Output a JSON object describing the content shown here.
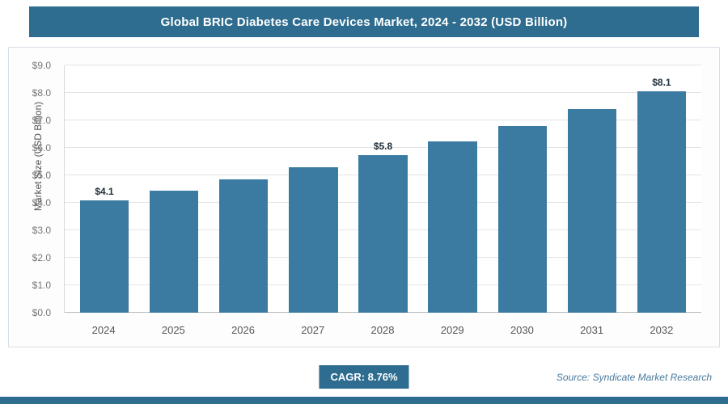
{
  "header": {
    "title": "Global BRIC Diabetes Care Devices Market, 2024 - 2032 (USD Billion)"
  },
  "chart_data": {
    "type": "bar",
    "title": "Global BRIC Diabetes Care Devices Market, 2024 - 2032 (USD Billion)",
    "categories": [
      "2024",
      "2025",
      "2026",
      "2027",
      "2028",
      "2029",
      "2030",
      "2031",
      "2032"
    ],
    "values": [
      4.1,
      4.45,
      4.85,
      5.3,
      5.75,
      6.25,
      6.8,
      7.4,
      8.05
    ],
    "bar_labels": [
      "$4.1",
      "",
      "",
      "",
      "$5.8",
      "",
      "",
      "",
      "$8.1"
    ],
    "xlabel": "",
    "ylabel": "Market Size (USD Billion)",
    "ylim": [
      0,
      9
    ],
    "ytick_step": 1,
    "ytick_labels": [
      "$0.0",
      "$1.0",
      "$2.0",
      "$3.0",
      "$4.0",
      "$5.0",
      "$6.0",
      "$7.0",
      "$8.0",
      "$9.0"
    ],
    "grid": true,
    "legend": false,
    "bar_color": "#3b7ba2",
    "accent_color": "#2e6d8f"
  },
  "footer": {
    "cagr_label": "CAGR: 8.76%",
    "source": "Source: Syndicate Market Research"
  }
}
